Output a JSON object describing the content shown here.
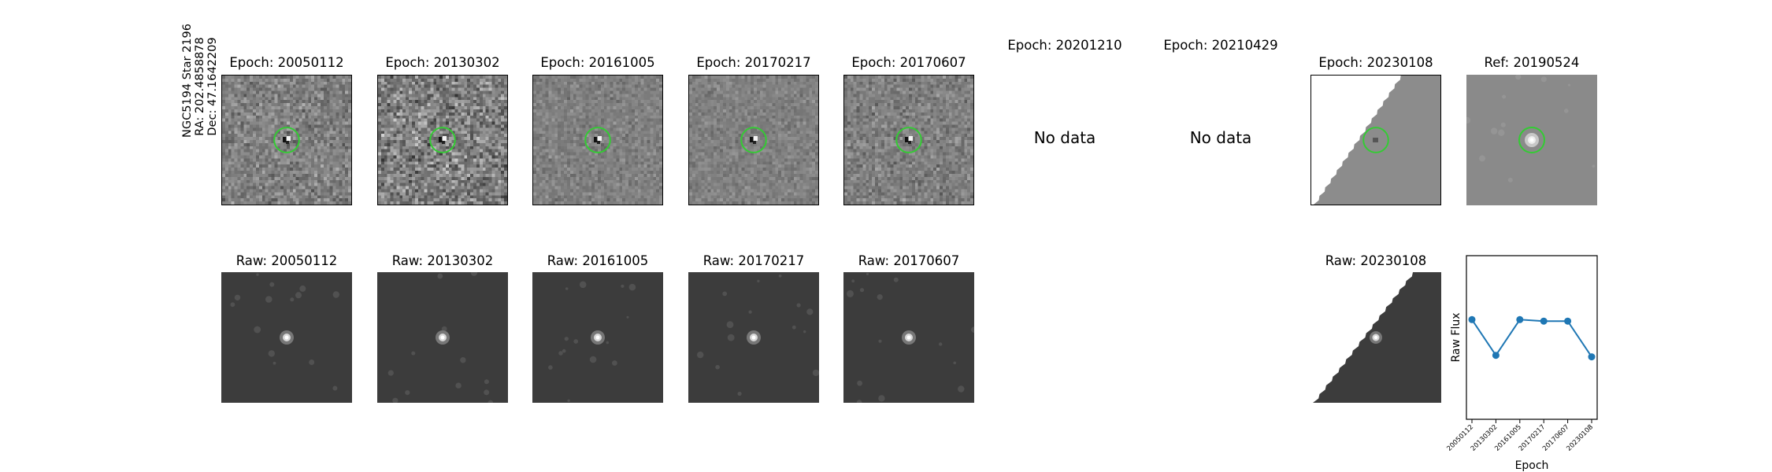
{
  "target": {
    "name": "NGC5194 Star 2196",
    "ra": "RA: 202.4858878",
    "dec": "Dec: 47.1642209"
  },
  "diff_panels": [
    {
      "title": "Epoch: 20050112",
      "has_data": true
    },
    {
      "title": "Epoch: 20130302",
      "has_data": true
    },
    {
      "title": "Epoch: 20161005",
      "has_data": true
    },
    {
      "title": "Epoch: 20170217",
      "has_data": true
    },
    {
      "title": "Epoch: 20170607",
      "has_data": true
    },
    {
      "title": "Epoch: 20201210",
      "has_data": false,
      "message": "No data"
    },
    {
      "title": "Epoch: 20210429",
      "has_data": false,
      "message": "No data"
    },
    {
      "title": "Epoch: 20230108",
      "has_data": true,
      "partial": true
    }
  ],
  "ref_panel": {
    "title": "Ref: 20190524"
  },
  "raw_panels": [
    {
      "title": "Raw: 20050112"
    },
    {
      "title": "Raw: 20130302"
    },
    {
      "title": "Raw: 20161005"
    },
    {
      "title": "Raw: 20170217"
    },
    {
      "title": "Raw: 20170607"
    },
    {
      "title": "Raw: 20230108",
      "partial": true
    }
  ],
  "colors": {
    "aperture": "#33cc33",
    "series": "#1f77b4"
  },
  "chart_data": {
    "type": "line",
    "title": "",
    "xlabel": "Epoch",
    "ylabel": "Raw Flux",
    "categories": [
      "20050112",
      "20130302",
      "20161005",
      "20170217",
      "20170607",
      "20230108"
    ],
    "values": [
      0.62,
      0.38,
      0.62,
      0.61,
      0.61,
      0.37
    ],
    "ylim": [
      -0.05,
      1.05
    ],
    "y_ticks_shown": false,
    "grid": false,
    "legend": "none"
  }
}
